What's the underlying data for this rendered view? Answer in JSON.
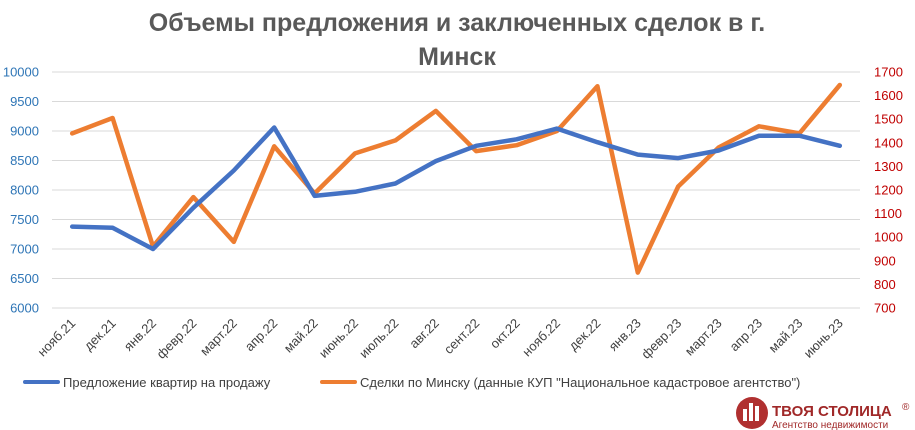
{
  "chart_data": {
    "type": "line",
    "title": "Объемы предложения и заключенных сделок в г. Минск",
    "title_lines": [
      "Объемы предложения и заключенных сделок в г.",
      "Минск"
    ],
    "categories": [
      "нояб.21",
      "дек.21",
      "янв.22",
      "февр.22",
      "март.22",
      "апр.22",
      "май.22",
      "июнь.22",
      "июль.22",
      "авг.22",
      "сент.22",
      "окт.22",
      "нояб.22",
      "дек.22",
      "янв.23",
      "февр.23",
      "март.23",
      "апр.23",
      "май.23",
      "июнь.23"
    ],
    "left_axis": {
      "ylim": [
        6000,
        10000
      ],
      "ticks": [
        "6000",
        "6500",
        "7000",
        "7500",
        "8000",
        "8500",
        "9000",
        "9500",
        "10000"
      ],
      "color": "#2e75b6"
    },
    "right_axis": {
      "ylim": [
        700,
        1700
      ],
      "ticks": [
        "700",
        "800",
        "900",
        "1000",
        "1100",
        "1200",
        "1300",
        "1400",
        "1500",
        "1600",
        "1700"
      ],
      "color": "#c00000"
    },
    "series": [
      {
        "name": "Предложение квартир на продажу",
        "axis": "left",
        "color": "#4472c4",
        "values": [
          7380,
          7360,
          7000,
          7700,
          8330,
          9060,
          7900,
          7970,
          8110,
          8490,
          8750,
          8860,
          9040,
          8810,
          8600,
          8540,
          8670,
          8920,
          8920,
          8750
        ]
      },
      {
        "name": "Сделки по Минску (данные КУП \"Национальное кадастровое агентство\")",
        "axis": "right",
        "color": "#ed7d31",
        "values": [
          1440,
          1505,
          960,
          1170,
          980,
          1385,
          1185,
          1355,
          1410,
          1535,
          1365,
          1390,
          1450,
          1640,
          850,
          1215,
          1380,
          1470,
          1440,
          1645
        ]
      }
    ],
    "grid": true,
    "legend_position": "bottom"
  },
  "logo": {
    "name": "ТВОЯ СТОЛИЦА",
    "mark": "®",
    "subtitle": "Агентство недвижимости"
  }
}
